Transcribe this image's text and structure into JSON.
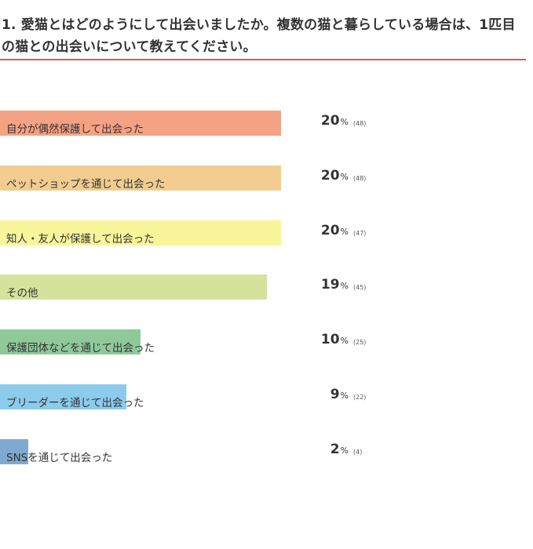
{
  "question": {
    "title": "1. 愛猫とはどのようにして出会いましたか。複数の猫と暮らしている場合は、1匹目の猫との出会いについて教えてください。"
  },
  "chart_data": {
    "type": "bar",
    "orientation": "horizontal",
    "percent_unit": "%",
    "categories": [
      "自分が偶然保護して出会った",
      "ペットショップを通じて出会った",
      "知人・友人が保護して出会った",
      "その他",
      "保護団体などを通じて出会った",
      "ブリーダーを通じて出会った",
      "SNSを通じて出会った"
    ],
    "values": [
      20,
      20,
      20,
      19,
      10,
      9,
      2
    ],
    "counts": [
      "(48)",
      "(48)",
      "(47)",
      "(45)",
      "(25)",
      "(22)",
      "(4)"
    ],
    "colors": [
      "#f4a283",
      "#f2cd8f",
      "#f9f59a",
      "#d5e29b",
      "#8fc99a",
      "#8ccbec",
      "#7fa9d1"
    ],
    "grid": false
  }
}
